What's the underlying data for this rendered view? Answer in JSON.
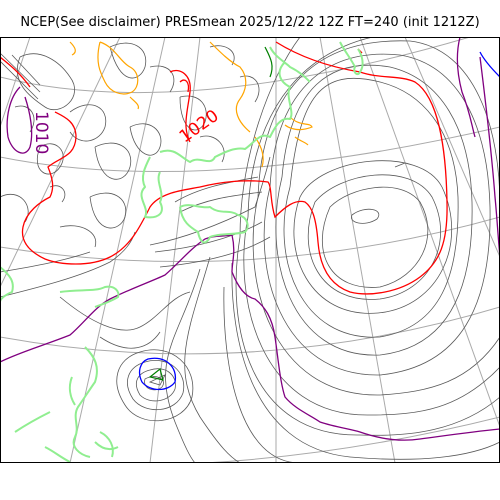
{
  "title": "NCEP(See disclaimer) PRESmean 2025/12/22 12Z FT=240 (init 1212Z)",
  "contour_labels": {
    "label_1020": "1020",
    "label_1010": "1010"
  },
  "colors": {
    "isobar": "#5a5a5a",
    "c1020": "#ff0000",
    "c1010": "#800080",
    "c1030": "#0000ff",
    "c1015": "#ffa500",
    "c1025": "#008000",
    "coastline": "#90ee90",
    "graticule": "#aaaaaa",
    "frame": "#000000"
  }
}
